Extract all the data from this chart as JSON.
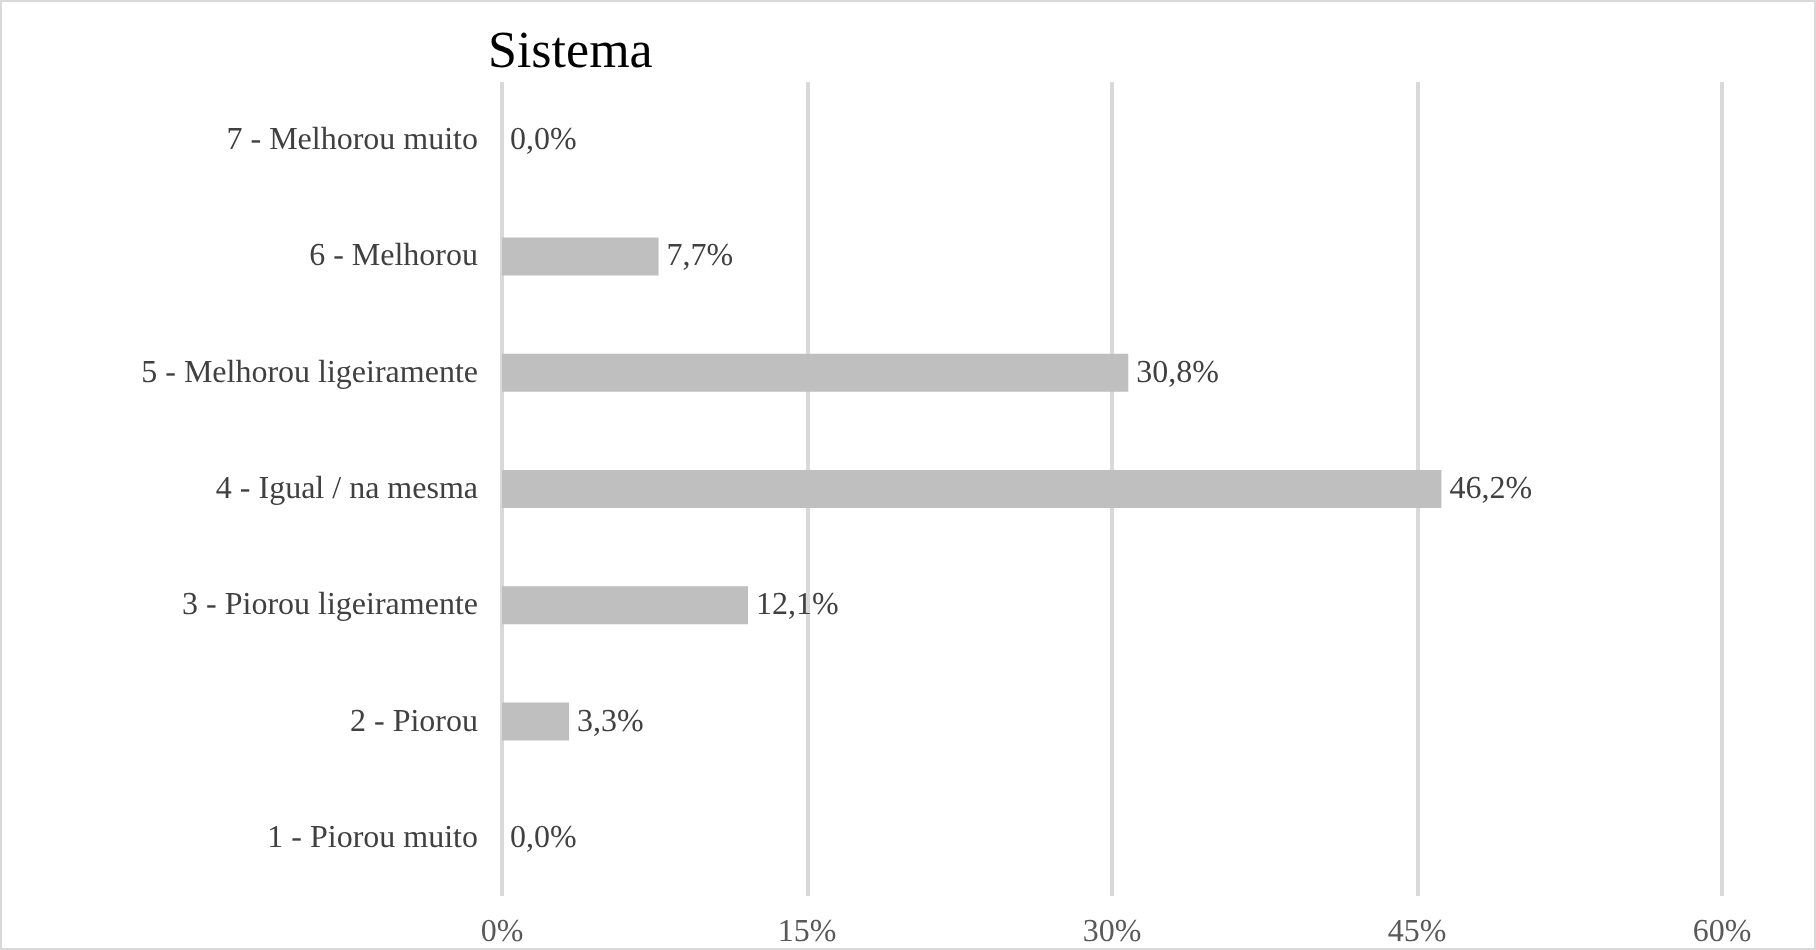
{
  "chart_data": {
    "type": "bar",
    "orientation": "horizontal",
    "title": "Sistema",
    "categories": [
      "7 - Melhorou muito",
      "6 - Melhorou",
      "5 - Melhorou ligeiramente",
      "4 - Igual / na mesma",
      "3 - Piorou ligeiramente",
      "2 - Piorou",
      "1 - Piorou muito"
    ],
    "values": [
      0.0,
      7.7,
      30.8,
      46.2,
      12.1,
      3.3,
      0.0
    ],
    "value_labels": [
      "0,0%",
      "7,7%",
      "30,8%",
      "46,2%",
      "12,1%",
      "3,3%",
      "0,0%"
    ],
    "color": "#bfbfbf",
    "xlim": [
      0,
      60
    ],
    "xticks": [
      {
        "value": 0,
        "label": "0%"
      },
      {
        "value": 15,
        "label": "15%"
      },
      {
        "value": 30,
        "label": "30%"
      },
      {
        "value": 45,
        "label": "45%"
      },
      {
        "value": 60,
        "label": "60%"
      }
    ],
    "grid": "x"
  }
}
